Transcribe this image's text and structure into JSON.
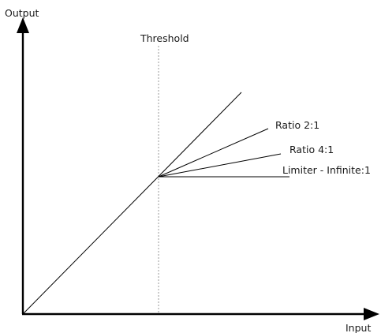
{
  "diagram": {
    "title": "",
    "axes": {
      "y_label": "Output",
      "x_label": "Input"
    },
    "threshold_label": "Threshold",
    "curves": [
      {
        "label": "Ratio 2:1",
        "ratio": "2:1"
      },
      {
        "label": "Ratio 4:1",
        "ratio": "4:1"
      },
      {
        "label": "Limiter - Infinite:1",
        "ratio": "Infinite:1"
      }
    ],
    "colors": {
      "lines": "#000000",
      "threshold_line": "#9a9a9a",
      "text": "#1a1a1a"
    }
  }
}
